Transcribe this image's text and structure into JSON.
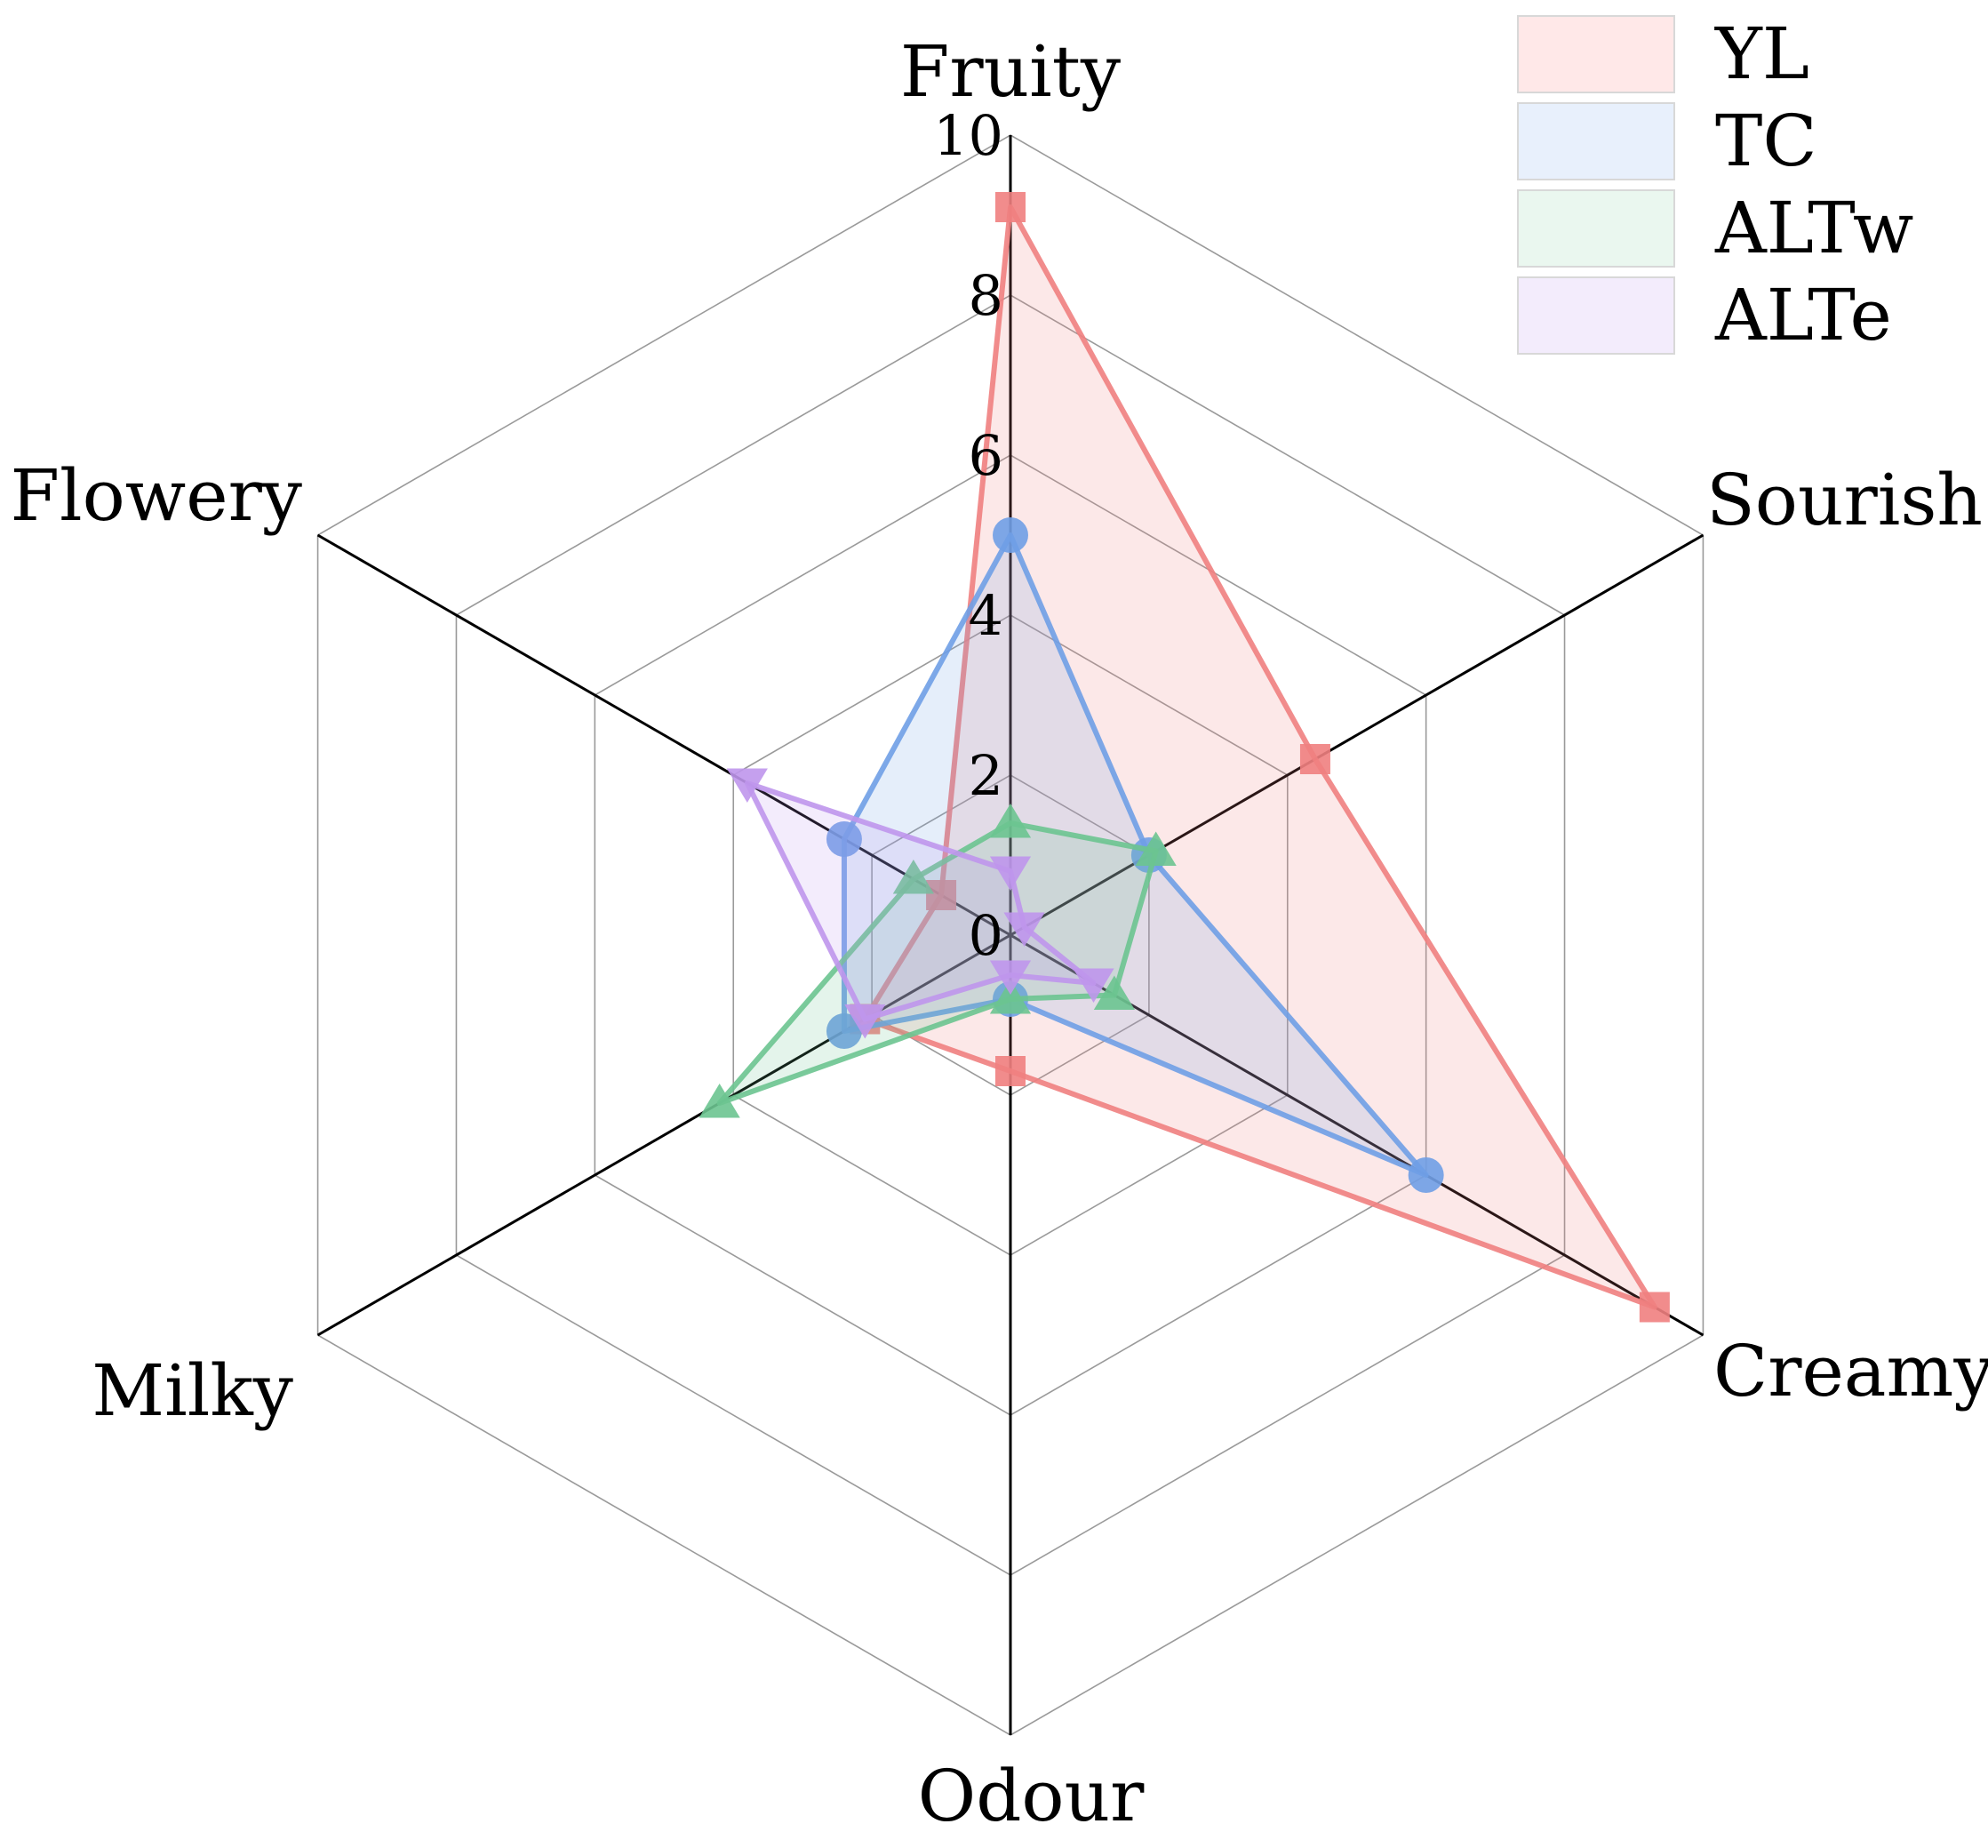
{
  "chart_data": {
    "type": "radar",
    "axes": [
      "Fruity",
      "Sourish",
      "Creamy",
      "Odour",
      "Milky",
      "Flowery"
    ],
    "rlim": [
      0,
      10
    ],
    "ticks": [
      "0",
      "2",
      "4",
      "6",
      "8",
      "10"
    ],
    "tick_values": [
      0,
      2,
      4,
      6,
      8,
      10
    ],
    "grid": true,
    "legend_position": "top-right",
    "series": [
      {
        "name": "YL",
        "values": [
          9.1,
          4.4,
          9.3,
          1.7,
          2.1,
          1.0
        ],
        "color": "#f08080",
        "fill": "#ffe8e8",
        "marker": "square"
      },
      {
        "name": "TC",
        "values": [
          5.0,
          2.0,
          6.0,
          0.8,
          2.4,
          2.4
        ],
        "color": "#6f9fe6",
        "fill": "#e8f0fc",
        "marker": "circle"
      },
      {
        "name": "ALTw",
        "values": [
          1.4,
          2.1,
          1.5,
          0.8,
          4.2,
          1.4
        ],
        "color": "#6cc490",
        "fill": "#eaf7ef",
        "marker": "triangle-up"
      },
      {
        "name": "ALTe",
        "values": [
          0.8,
          0.2,
          1.2,
          0.5,
          2.1,
          3.8
        ],
        "color": "#bf96ec",
        "fill": "#f3ecfc",
        "marker": "triangle-down"
      }
    ]
  }
}
